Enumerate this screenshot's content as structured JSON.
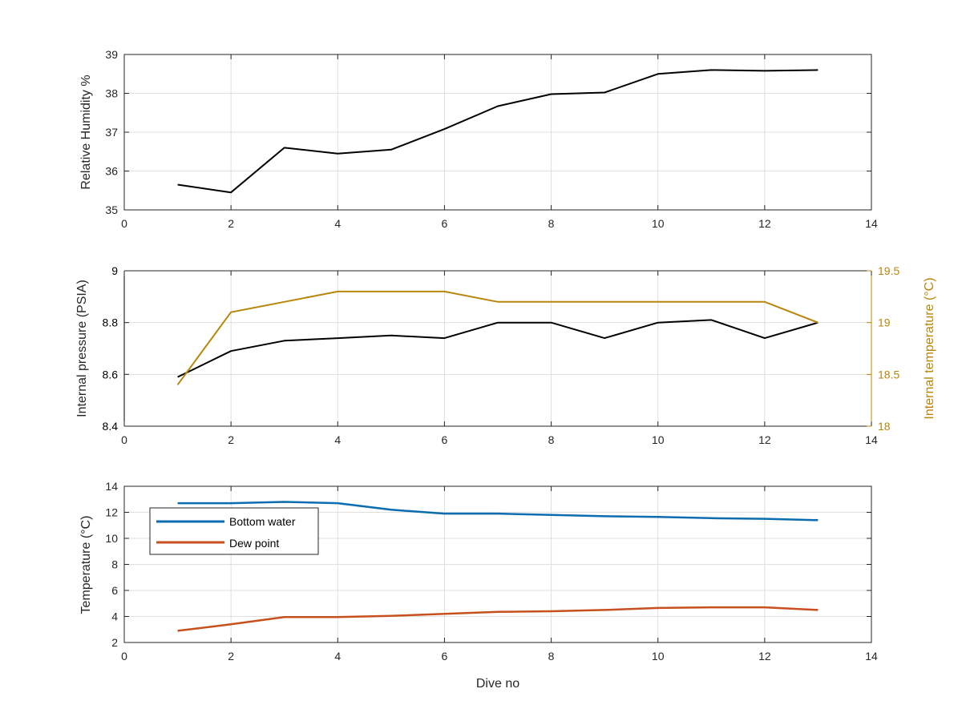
{
  "chart_data": [
    {
      "type": "line",
      "panel": "top",
      "xlabel": "",
      "ylabel": "Relative Humidity %",
      "xlim": [
        0,
        14
      ],
      "ylim": [
        35,
        39
      ],
      "xticks": [
        "0",
        "2",
        "4",
        "6",
        "8",
        "10",
        "12",
        "14"
      ],
      "yticks": [
        "35",
        "36",
        "37",
        "38",
        "39"
      ],
      "grid": true,
      "series": [
        {
          "color": "#000000",
          "x": [
            1,
            2,
            3,
            4,
            5,
            6,
            7,
            8,
            9,
            10,
            11,
            12,
            13
          ],
          "y": [
            35.65,
            35.45,
            36.6,
            36.45,
            36.55,
            37.08,
            37.67,
            37.98,
            38.02,
            38.5,
            38.6,
            38.58,
            38.6
          ]
        }
      ]
    },
    {
      "type": "line",
      "panel": "middle",
      "xlabel": "",
      "ylabel": "Internal pressure (PSIA)",
      "ylabel_right": "Internal temperature (°C)",
      "xlim": [
        0,
        14
      ],
      "ylim": [
        8.4,
        9
      ],
      "ylim_right": [
        18,
        19.5
      ],
      "xticks": [
        "0",
        "2",
        "4",
        "6",
        "8",
        "10",
        "12",
        "14"
      ],
      "yticks": [
        "8.4",
        "8.6",
        "8.8",
        "9"
      ],
      "yticks_right": [
        "18",
        "18.5",
        "19",
        "19.5"
      ],
      "grid": true,
      "series": [
        {
          "axis": "left",
          "color": "#000000",
          "x": [
            1,
            2,
            3,
            4,
            5,
            6,
            7,
            8,
            9,
            10,
            11,
            12,
            13
          ],
          "y": [
            8.59,
            8.69,
            8.73,
            8.74,
            8.75,
            8.74,
            8.8,
            8.8,
            8.74,
            8.8,
            8.81,
            8.74,
            8.8
          ]
        },
        {
          "axis": "right",
          "color": "#b8860b",
          "x": [
            1,
            2,
            3,
            4,
            5,
            6,
            7,
            8,
            9,
            10,
            11,
            12,
            13
          ],
          "y": [
            18.4,
            19.1,
            19.2,
            19.3,
            19.3,
            19.3,
            19.2,
            19.2,
            19.2,
            19.2,
            19.2,
            19.2,
            19.0
          ]
        }
      ]
    },
    {
      "type": "line",
      "panel": "bottom",
      "xlabel": "Dive no",
      "ylabel": "Temperature (°C)",
      "xlim": [
        0,
        14
      ],
      "ylim": [
        2,
        14
      ],
      "xticks": [
        "0",
        "2",
        "4",
        "6",
        "8",
        "10",
        "12",
        "14"
      ],
      "yticks": [
        "2",
        "4",
        "6",
        "8",
        "10",
        "12",
        "14"
      ],
      "grid": true,
      "legend_position": "top-left",
      "series": [
        {
          "name": "Bottom water",
          "color": "#0b6cb0",
          "x": [
            1,
            2,
            3,
            4,
            5,
            6,
            7,
            8,
            9,
            10,
            11,
            12,
            13
          ],
          "y": [
            12.7,
            12.7,
            12.8,
            12.7,
            12.2,
            11.9,
            11.9,
            11.8,
            11.7,
            11.65,
            11.55,
            11.5,
            11.4
          ]
        },
        {
          "name": "Dew point",
          "color": "#c8501e",
          "x": [
            1,
            2,
            3,
            4,
            5,
            6,
            7,
            8,
            9,
            10,
            11,
            12,
            13
          ],
          "y": [
            2.9,
            3.4,
            3.95,
            3.95,
            4.05,
            4.2,
            4.35,
            4.4,
            4.5,
            4.65,
            4.7,
            4.7,
            4.5
          ]
        }
      ]
    }
  ]
}
